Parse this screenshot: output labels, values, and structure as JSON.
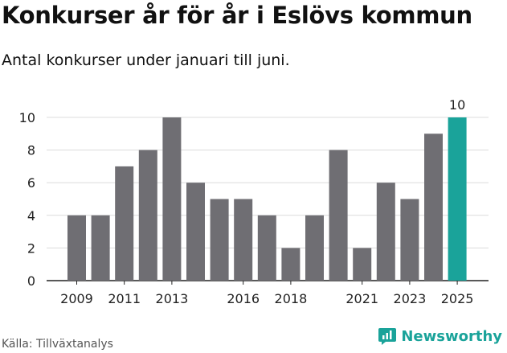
{
  "header": {
    "title": "Konkurser år för år i Eslövs kommun",
    "subtitle": "Antal konkurser under januari till juni."
  },
  "footer": {
    "source": "Källa: Tillväxtanalys",
    "brand": "Newsworthy"
  },
  "colors": {
    "bar": "#6f6e73",
    "highlight": "#1aa39a",
    "grid": "#dcdcdc",
    "axis": "#222222"
  },
  "icons": {
    "brand": "chart-speech-bubble-icon"
  },
  "chart_data": {
    "type": "bar",
    "categories": [
      "2009",
      "2010",
      "2011",
      "2012",
      "2013",
      "2014",
      "2015",
      "2016",
      "2017",
      "2018",
      "2019",
      "2020",
      "2021",
      "2022",
      "2023",
      "2024",
      "2025"
    ],
    "values": [
      4,
      4,
      7,
      8,
      10,
      6,
      5,
      5,
      4,
      2,
      4,
      8,
      2,
      6,
      5,
      9,
      10
    ],
    "x_tick_labels": [
      "2009",
      "2011",
      "2013",
      "2016",
      "2018",
      "2021",
      "2023",
      "2025"
    ],
    "y_ticks": [
      0,
      2,
      4,
      6,
      8,
      10
    ],
    "ylim": [
      0,
      10
    ],
    "highlight_category": "2025",
    "highlight_label": "10",
    "grid": true,
    "title": "Konkurser år för år i Eslövs kommun",
    "xlabel": "",
    "ylabel": ""
  }
}
